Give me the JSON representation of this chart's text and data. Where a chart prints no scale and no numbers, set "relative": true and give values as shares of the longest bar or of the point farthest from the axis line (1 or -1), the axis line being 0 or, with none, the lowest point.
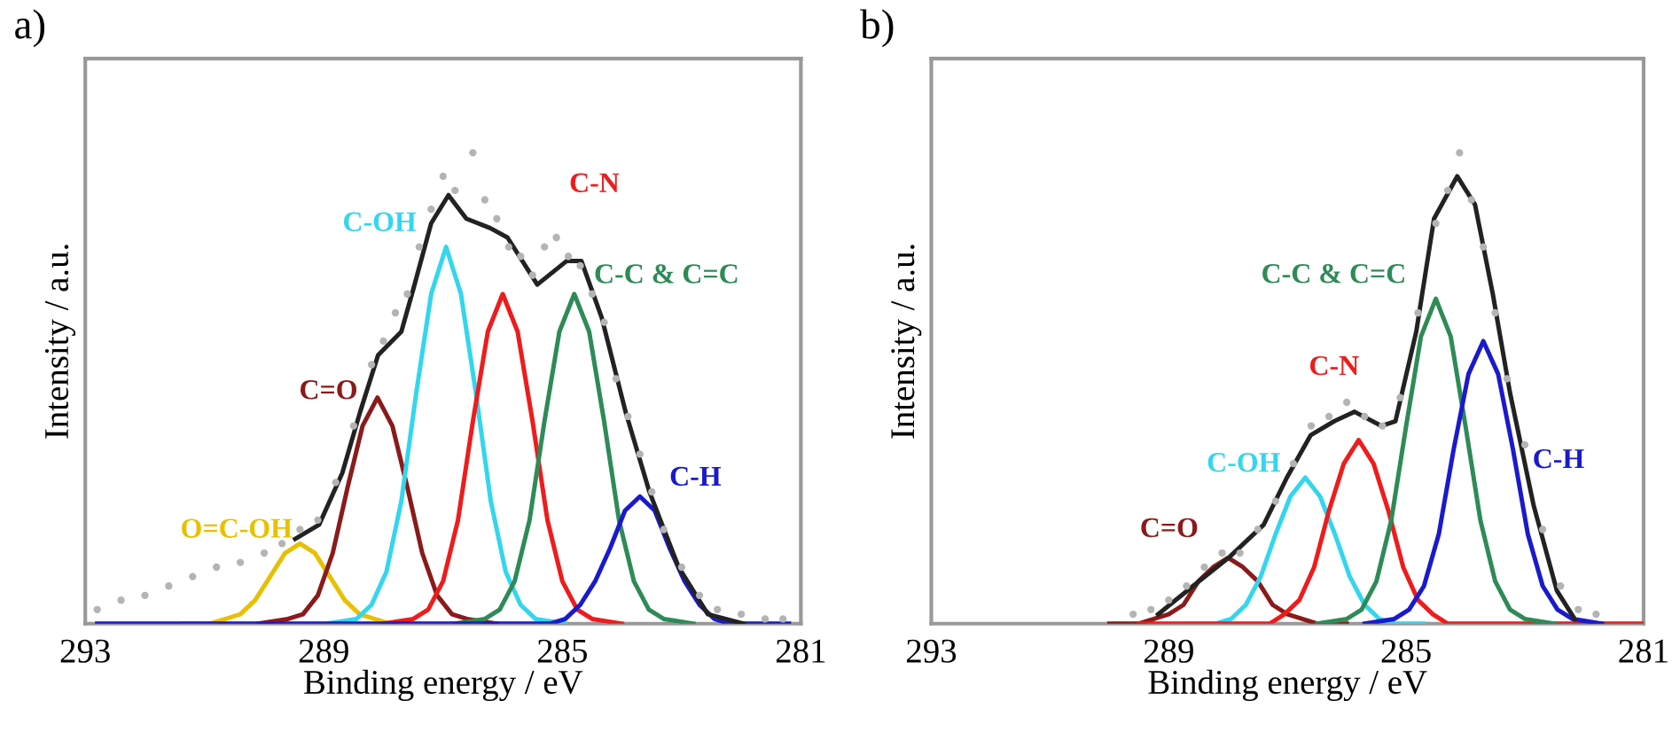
{
  "chart_data": [
    {
      "type": "line",
      "title": "a)",
      "xlabel": "Binding energy / eV",
      "ylabel": "Intensity / a.u.",
      "relative": true,
      "xlim": [
        293,
        281
      ],
      "xticks": [
        293,
        289,
        285,
        281
      ],
      "legend": false,
      "grid": false,
      "series": [
        {
          "name": "O=C-OH",
          "color": "#e8c000",
          "x": [
            291.4,
            290.9,
            290.65,
            290.4,
            290.15,
            289.9,
            289.65,
            289.4,
            289.15,
            288.9,
            288.65,
            288.4,
            288.15,
            287.9,
            287.4
          ],
          "values": [
            0,
            0,
            0.01,
            0.02,
            0.05,
            0.1,
            0.15,
            0.17,
            0.15,
            0.1,
            0.05,
            0.02,
            0.01,
            0,
            0
          ]
        },
        {
          "name": "C=O",
          "color": "#8b1a1a",
          "x": [
            290.1,
            289.6,
            289.35,
            289.1,
            288.85,
            288.6,
            288.35,
            288.1,
            287.85,
            287.6,
            287.35,
            287.1,
            286.85,
            286.6,
            286.1
          ],
          "values": [
            0,
            0.01,
            0.02,
            0.06,
            0.15,
            0.29,
            0.42,
            0.48,
            0.42,
            0.29,
            0.15,
            0.06,
            0.02,
            0.01,
            0
          ]
        },
        {
          "name": "C-OH",
          "color": "#33d6ee",
          "x": [
            288.95,
            288.45,
            288.2,
            287.95,
            287.7,
            287.45,
            287.2,
            286.95,
            286.7,
            286.45,
            286.2,
            285.95,
            285.7,
            285.45,
            284.95
          ],
          "values": [
            0,
            0.01,
            0.04,
            0.11,
            0.26,
            0.49,
            0.7,
            0.8,
            0.7,
            0.49,
            0.26,
            0.11,
            0.04,
            0.01,
            0
          ]
        },
        {
          "name": "C-N",
          "color": "#ee1c1c",
          "x": [
            288.0,
            287.5,
            287.25,
            287.0,
            286.75,
            286.5,
            286.25,
            286.0,
            285.75,
            285.5,
            285.25,
            285.0,
            284.75,
            284.5,
            284.0
          ],
          "values": [
            0,
            0.01,
            0.03,
            0.09,
            0.22,
            0.43,
            0.62,
            0.7,
            0.62,
            0.43,
            0.22,
            0.09,
            0.03,
            0.01,
            0
          ]
        },
        {
          "name": "C-C & C=C",
          "color": "#2e8b57",
          "x": [
            286.8,
            286.3,
            286.05,
            285.8,
            285.55,
            285.3,
            285.05,
            284.8,
            284.55,
            284.3,
            284.05,
            283.8,
            283.55,
            283.3,
            282.8
          ],
          "values": [
            0,
            0.01,
            0.03,
            0.09,
            0.22,
            0.43,
            0.62,
            0.7,
            0.62,
            0.43,
            0.22,
            0.09,
            0.03,
            0.01,
            0
          ]
        },
        {
          "name": "C-H",
          "color": "#1a1acc",
          "x": [
            292.8,
            285.7,
            285.2,
            284.95,
            284.7,
            284.45,
            284.2,
            283.95,
            283.7,
            283.45,
            283.2,
            282.95,
            282.7,
            282.45,
            282.2,
            281.7,
            281.2
          ],
          "values": [
            0,
            0,
            0,
            0.01,
            0.04,
            0.09,
            0.16,
            0.24,
            0.27,
            0.24,
            0.16,
            0.09,
            0.04,
            0.01,
            0,
            0,
            0
          ]
        },
        {
          "color": "#222222",
          "x": [
            289.48,
            289.08,
            288.69,
            288.39,
            288.09,
            287.7,
            287.5,
            287.2,
            286.91,
            286.61,
            286.21,
            285.92,
            285.42,
            284.93,
            284.68,
            284.34,
            283.94,
            283.54,
            283.05,
            282.56,
            281.96
          ],
          "values": [
            0.18,
            0.21,
            0.32,
            0.45,
            0.57,
            0.62,
            0.71,
            0.85,
            0.91,
            0.86,
            0.84,
            0.82,
            0.72,
            0.77,
            0.77,
            0.65,
            0.45,
            0.28,
            0.12,
            0.02,
            0
          ]
        },
        {
          "type": "scatter",
          "marker": "circle",
          "color": "#b4b4b4",
          "x": [
            292.8,
            292.4,
            292.0,
            291.6,
            291.2,
            290.8,
            290.4,
            290.0,
            289.7,
            289.4,
            289.1,
            288.8,
            288.5,
            288.2,
            288.0,
            287.8,
            287.6,
            287.4,
            287.2,
            287.0,
            286.8,
            286.5,
            286.3,
            286.1,
            285.9,
            285.7,
            285.5,
            285.3,
            285.1,
            284.9,
            284.7,
            284.5,
            284.3,
            284.1,
            283.9,
            283.7,
            283.5,
            283.3,
            283.0,
            282.7,
            282.4,
            282.0,
            281.6,
            281.3
          ],
          "values": [
            0.03,
            0.05,
            0.06,
            0.08,
            0.1,
            0.12,
            0.13,
            0.15,
            0.17,
            0.2,
            0.22,
            0.3,
            0.42,
            0.55,
            0.6,
            0.66,
            0.7,
            0.8,
            0.88,
            0.95,
            0.92,
            1.0,
            0.9,
            0.86,
            0.8,
            0.78,
            0.74,
            0.8,
            0.82,
            0.78,
            0.76,
            0.7,
            0.64,
            0.52,
            0.44,
            0.36,
            0.28,
            0.2,
            0.12,
            0.06,
            0.03,
            0.02,
            0.01,
            0.01
          ]
        }
      ]
    },
    {
      "type": "line",
      "title": "b)",
      "xlabel": "Binding energy / eV",
      "ylabel": "Intensity / a.u.",
      "relative": true,
      "xlim": [
        293,
        281
      ],
      "xticks": [
        293,
        289,
        285,
        281
      ],
      "legend": false,
      "grid": false,
      "series": [
        {
          "name": "C=O",
          "color": "#8b1a1a",
          "x": [
            290.0,
            289.5,
            289.25,
            289.0,
            288.75,
            288.5,
            288.25,
            288.0,
            287.75,
            287.5,
            287.25,
            287.0,
            286.75,
            286.5,
            286.0
          ],
          "values": [
            0,
            0,
            0.01,
            0.02,
            0.04,
            0.09,
            0.12,
            0.14,
            0.12,
            0.09,
            0.04,
            0.02,
            0.01,
            0,
            0
          ]
        },
        {
          "name": "C-OH",
          "color": "#33d6ee",
          "x": [
            288.7,
            288.2,
            287.95,
            287.7,
            287.45,
            287.2,
            286.95,
            286.7,
            286.45,
            286.2,
            285.95,
            285.7,
            285.45,
            285.2,
            284.7
          ],
          "values": [
            0,
            0,
            0.01,
            0.04,
            0.1,
            0.19,
            0.27,
            0.31,
            0.27,
            0.19,
            0.1,
            0.04,
            0.01,
            0,
            0
          ]
        },
        {
          "name": "C-N",
          "color": "#ee1c1c",
          "x": [
            289.5,
            287.8,
            287.3,
            287.05,
            286.8,
            286.55,
            286.3,
            286.05,
            285.8,
            285.55,
            285.3,
            285.05,
            284.8,
            284.55,
            284.3,
            283.8,
            281.0
          ],
          "values": [
            0,
            0,
            0,
            0.02,
            0.05,
            0.12,
            0.24,
            0.34,
            0.39,
            0.34,
            0.24,
            0.12,
            0.05,
            0.02,
            0,
            0,
            0
          ]
        },
        {
          "name": "C-C & C=C",
          "color": "#2e8b57",
          "x": [
            286.5,
            286.0,
            285.75,
            285.5,
            285.25,
            285.0,
            284.75,
            284.5,
            284.25,
            284.0,
            283.75,
            283.5,
            283.25,
            283.0,
            282.5
          ],
          "values": [
            0,
            0.01,
            0.03,
            0.09,
            0.22,
            0.42,
            0.61,
            0.69,
            0.61,
            0.42,
            0.22,
            0.09,
            0.03,
            0.01,
            0
          ]
        },
        {
          "name": "C-H",
          "color": "#1a1acc",
          "x": [
            285.7,
            285.2,
            284.95,
            284.7,
            284.45,
            284.2,
            283.95,
            283.7,
            283.45,
            283.2,
            282.95,
            282.7,
            282.45,
            282.2,
            281.7
          ],
          "values": [
            0,
            0.01,
            0.03,
            0.08,
            0.19,
            0.37,
            0.53,
            0.6,
            0.53,
            0.37,
            0.19,
            0.08,
            0.03,
            0.01,
            0
          ]
        },
        {
          "color": "#222222",
          "x": [
            289.18,
            288.59,
            287.99,
            287.4,
            287.01,
            286.61,
            286.21,
            285.87,
            285.42,
            285.18,
            284.83,
            284.53,
            284.14,
            283.84,
            283.54,
            283.25,
            282.85,
            282.46,
            282.16
          ],
          "values": [
            0.02,
            0.08,
            0.14,
            0.21,
            0.31,
            0.4,
            0.43,
            0.45,
            0.42,
            0.43,
            0.62,
            0.86,
            0.95,
            0.89,
            0.7,
            0.49,
            0.25,
            0.07,
            0.01
          ]
        },
        {
          "type": "scatter",
          "marker": "circle",
          "color": "#b4b4b4",
          "x": [
            289.6,
            289.3,
            289.0,
            288.7,
            288.4,
            288.1,
            287.8,
            287.5,
            287.2,
            286.9,
            286.6,
            286.3,
            286.0,
            285.7,
            285.4,
            285.1,
            284.8,
            284.5,
            284.3,
            284.1,
            283.9,
            283.7,
            283.5,
            283.3,
            283.0,
            282.7,
            282.4,
            282.1,
            281.8
          ],
          "values": [
            0.02,
            0.03,
            0.05,
            0.08,
            0.12,
            0.15,
            0.15,
            0.2,
            0.26,
            0.34,
            0.42,
            0.44,
            0.47,
            0.44,
            0.42,
            0.48,
            0.66,
            0.85,
            0.92,
            1.0,
            0.9,
            0.8,
            0.66,
            0.52,
            0.38,
            0.2,
            0.08,
            0.03,
            0.02
          ]
        }
      ]
    }
  ]
}
